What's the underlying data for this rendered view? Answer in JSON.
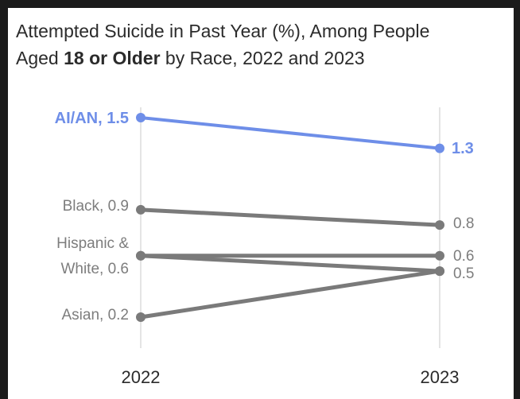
{
  "title": {
    "pre": "Attempted Suicide in Past Year (%), Among People",
    "line2_pre": "Aged ",
    "bold": "18 or Older",
    "line2_post": " by Race, 2022 and 2023"
  },
  "colors": {
    "highlight": "#6e8ee8",
    "series": "#7a7a7a",
    "label": "#7d7d7d",
    "grid": "#dcdcdc"
  },
  "left_labels": {
    "aian": "AI/AN, 1.5",
    "black": "Black, 0.9",
    "hw_line1": "Hispanic &",
    "hw_line2": "White, 0.6",
    "asian": "Asian, 0.2"
  },
  "right_labels": {
    "aian": "1.3",
    "black": "0.8",
    "white": "0.6",
    "hisp_asian": "0.5"
  },
  "chart_data": {
    "type": "line",
    "title": "Attempted Suicide in Past Year (%), Among People Aged 18 or Older by Race, 2022 and 2023",
    "categories": [
      "2022",
      "2023"
    ],
    "series": [
      {
        "name": "AI/AN",
        "values": [
          1.5,
          1.3
        ],
        "color": "#6e8ee8"
      },
      {
        "name": "Black",
        "values": [
          0.9,
          0.8
        ],
        "color": "#7a7a7a"
      },
      {
        "name": "Hispanic",
        "values": [
          0.6,
          0.5
        ],
        "color": "#7a7a7a"
      },
      {
        "name": "White",
        "values": [
          0.6,
          0.6
        ],
        "color": "#7a7a7a"
      },
      {
        "name": "Asian",
        "values": [
          0.2,
          0.5
        ],
        "color": "#7a7a7a"
      }
    ],
    "grid": "vertical lines at categories",
    "legend": "none"
  }
}
